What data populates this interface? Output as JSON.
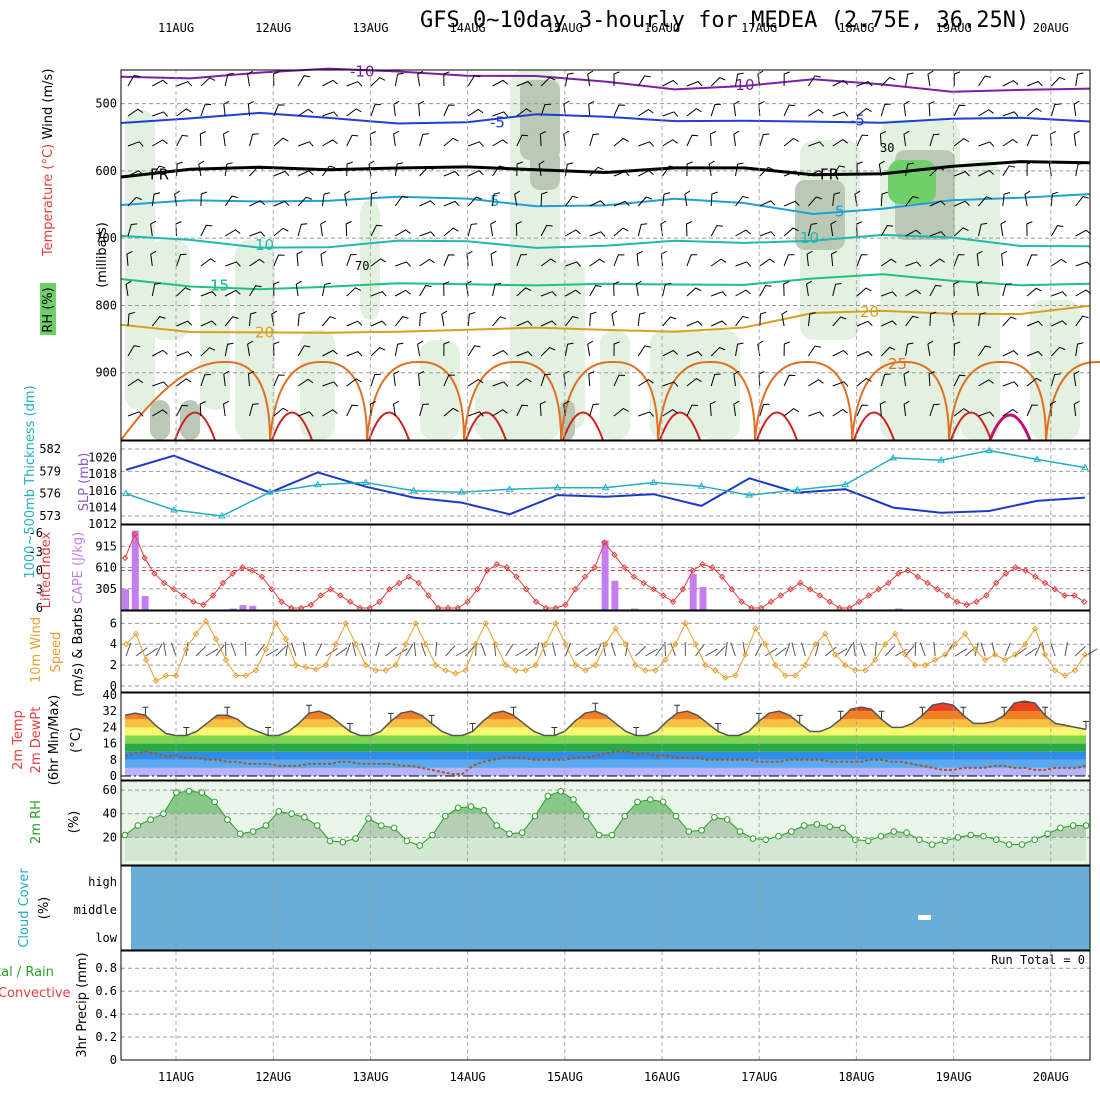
{
  "title": "GFS 0~10day 3-hourly for MEDEA (2.75E, 36.25N)",
  "chart_data": [
    {
      "panel": "upper-air",
      "type": "heatmap",
      "y_label_parts": [
        "RH (%)",
        "Temperature (°C)",
        "Wind (m/s)"
      ],
      "y_unit_label": "(millibars)",
      "y_ticks": [
        500,
        600,
        700,
        800,
        900
      ],
      "ylim": [
        1000,
        450
      ],
      "temperature_contours": [
        {
          "label": "-10",
          "color": "#7a1fa8",
          "p": [
            460,
            458,
            455,
            452,
            450,
            455,
            462,
            470,
            475,
            472,
            468,
            472,
            478,
            480,
            482
          ]
        },
        {
          "label": "-5",
          "color": "#1f3fd0",
          "p": [
            525,
            520,
            518,
            522,
            525,
            528,
            520,
            518,
            522,
            528,
            530,
            525,
            520,
            525,
            528
          ]
        },
        {
          "label": "FR",
          "color": "#000000",
          "p": [
            605,
            600,
            598,
            595,
            593,
            598,
            600,
            598,
            595,
            600,
            605,
            600,
            595,
            590,
            585
          ]
        },
        {
          "label": "5",
          "color": "#1fa0d8",
          "p": [
            650,
            648,
            645,
            640,
            640,
            645,
            650,
            648,
            645,
            650,
            660,
            655,
            648,
            640,
            630
          ]
        },
        {
          "label": "10",
          "color": "#20b8b0",
          "p": [
            700,
            705,
            710,
            712,
            708,
            705,
            710,
            712,
            708,
            705,
            700,
            698,
            702,
            708,
            710
          ]
        },
        {
          "label": "15",
          "color": "#20c080",
          "p": [
            765,
            770,
            772,
            775,
            770,
            765,
            768,
            772,
            770,
            765,
            760,
            758,
            762,
            766,
            770
          ]
        },
        {
          "label": "20",
          "color": "#d8a020",
          "p": [
            830,
            835,
            840,
            845,
            838,
            832,
            835,
            840,
            836,
            830,
            815,
            810,
            808,
            812,
            805
          ]
        },
        {
          "label": "25",
          "color": "#e07020",
          "p": [
            990,
            920,
            990,
            915,
            990,
            912,
            990,
            910,
            990,
            900,
            870,
            865,
            860,
            870,
            880
          ]
        }
      ],
      "rh_contour_labels": [
        "30",
        "70"
      ]
    },
    {
      "panel": "thickness-slp",
      "type": "line",
      "y_label_left": "1000~500mb Thickness (dm)",
      "y_label_right": "SLP (mb)",
      "left_ticks": [
        573,
        576,
        579,
        582
      ],
      "right_ticks": [
        1014,
        1016,
        1018,
        1020
      ],
      "x": [
        "10AUG12",
        "11AUG00",
        "11AUG12",
        "12AUG00",
        "12AUG12",
        "13AUG00",
        "13AUG12",
        "14AUG00",
        "14AUG12",
        "15AUG00",
        "15AUG12",
        "16AUG00",
        "16AUG12",
        "17AUG00",
        "17AUG12",
        "18AUG00",
        "18AUG12",
        "19AUG00",
        "19AUG12",
        "20AUG00",
        "20AUG12"
      ],
      "series": [
        {
          "name": "SLP",
          "color": "#1a3acc",
          "values": [
            1018.5,
            1020.2,
            1018.0,
            1015.8,
            1018.2,
            1016.5,
            1015.2,
            1014.6,
            1013.2,
            1015.5,
            1015.3,
            1015.6,
            1014.2,
            1017.5,
            1015.8,
            1016.2,
            1014.0,
            1013.4,
            1013.6,
            1014.8,
            1015.2
          ]
        },
        {
          "name": "Thickness",
          "color": "#20b0c0",
          "values": [
            576.0,
            573.8,
            573.0,
            576.2,
            577.2,
            577.5,
            576.4,
            576.2,
            576.6,
            576.8,
            576.8,
            577.5,
            577.0,
            575.8,
            576.5,
            577.2,
            580.8,
            580.5,
            581.8,
            580.6,
            579.5
          ]
        }
      ]
    },
    {
      "panel": "stability",
      "type": "bar",
      "y_label_left": "Lifted Index",
      "y_label_right": "CAPE (J/kg)",
      "left_ticks": [
        -6,
        -3,
        0,
        3,
        6
      ],
      "right_ticks": [
        305,
        610,
        915
      ],
      "cape_bars": [
        {
          "x": 0,
          "v": 300
        },
        {
          "x": 1,
          "v": 1140
        },
        {
          "x": 2,
          "v": 200
        },
        {
          "x": 11,
          "v": 20
        },
        {
          "x": 12,
          "v": 70
        },
        {
          "x": 13,
          "v": 60
        },
        {
          "x": 49,
          "v": 1000
        },
        {
          "x": 50,
          "v": 420
        },
        {
          "x": 52,
          "v": 20
        },
        {
          "x": 58,
          "v": 520
        },
        {
          "x": 59,
          "v": 330
        },
        {
          "x": 79,
          "v": 20
        }
      ],
      "lifted_index": [
        -2,
        -5.8,
        -2,
        0.5,
        2,
        3,
        4,
        5,
        5.5,
        4,
        2,
        0.5,
        -0.5,
        0,
        1,
        3,
        5,
        6,
        6,
        5.5,
        4,
        3,
        4,
        5,
        6,
        6,
        5,
        3,
        2,
        1,
        2,
        4,
        6,
        6,
        6,
        5,
        3,
        0,
        -1,
        -0.5,
        1,
        3,
        5,
        6,
        6,
        5.5,
        3,
        1,
        -0.5,
        -4.5,
        -2.5,
        -0.5,
        1,
        2,
        3,
        4,
        5,
        3,
        0,
        -1,
        -0.5,
        1,
        3,
        5,
        6,
        6,
        5,
        4,
        3,
        2,
        3,
        4,
        5,
        6,
        6,
        5,
        4,
        3,
        2,
        0.5,
        0,
        1,
        2,
        3,
        4,
        5,
        5.5,
        5,
        4,
        2,
        0.5,
        -0.5,
        0,
        1,
        2,
        3,
        4,
        4,
        5
      ]
    },
    {
      "panel": "wind10m",
      "type": "line",
      "y_label": "10m Wind Speed & Barbs (m/s)",
      "y_ticks": [
        0,
        2,
        4,
        6
      ],
      "values": [
        4,
        5,
        2.5,
        0.5,
        1,
        1,
        3.5,
        5,
        6.2,
        4.5,
        2.5,
        1,
        1,
        1.5,
        3.5,
        6,
        4.5,
        2,
        1.8,
        1.6,
        2,
        4,
        6,
        4,
        2,
        1.5,
        1.5,
        2,
        4,
        6,
        4,
        2,
        1.5,
        1.2,
        1.5,
        4,
        6,
        4,
        2,
        1.5,
        1.5,
        2,
        4,
        6,
        4,
        2,
        1.5,
        2,
        4,
        5.5,
        4,
        2,
        1.5,
        1.5,
        2.5,
        4,
        6,
        4,
        2,
        1.5,
        0.8,
        1,
        3,
        5.5,
        4,
        2,
        1,
        1,
        2,
        4,
        5,
        3,
        2,
        1.5,
        1.5,
        2.5,
        4,
        5,
        3,
        2,
        2,
        2.5,
        3,
        4,
        5,
        3.5,
        2.5,
        3,
        2.5,
        3,
        4,
        5.5,
        3,
        1.5,
        1,
        1.5,
        3
      ]
    },
    {
      "panel": "temperature",
      "type": "area",
      "y_label": "2m Temp 2m DewPt (6hr Min/Max) (°C)",
      "y_ticks": [
        0,
        8,
        16,
        24,
        32,
        40
      ],
      "temp_max": [
        30,
        31,
        30,
        25,
        21,
        20,
        20,
        22,
        26,
        30,
        30,
        28,
        24,
        22,
        20,
        20,
        22,
        26,
        31,
        32,
        30,
        26,
        22,
        20,
        20,
        22,
        27,
        31,
        32,
        30,
        26,
        22,
        20,
        20,
        22,
        27,
        31,
        32,
        30,
        26,
        22,
        20,
        20,
        22,
        27,
        31,
        32,
        30,
        26,
        22,
        20,
        20,
        22,
        27,
        31,
        32,
        30,
        26,
        22,
        20,
        20,
        22,
        27,
        31,
        32,
        30,
        26,
        22,
        22,
        24,
        28,
        33,
        34,
        33,
        28,
        24,
        24,
        26,
        30,
        35,
        36,
        35,
        30,
        26,
        26,
        27,
        30,
        36,
        37,
        36,
        30,
        26,
        25,
        24,
        23
      ],
      "dewpoint": [
        10,
        11,
        12,
        11,
        10,
        10,
        9,
        9,
        8,
        8,
        7,
        7,
        6,
        6,
        6,
        5,
        5,
        5,
        6,
        6,
        6,
        7,
        7,
        6,
        6,
        6,
        6,
        5,
        5,
        4,
        3,
        2,
        1,
        1,
        5,
        7,
        8,
        9,
        9,
        9,
        8,
        8,
        8,
        8,
        9,
        9,
        10,
        11,
        12,
        12,
        11,
        11,
        10,
        10,
        9,
        9,
        9,
        8,
        8,
        8,
        8,
        8,
        7,
        7,
        7,
        8,
        8,
        8,
        8,
        7,
        7,
        7,
        7,
        8,
        8,
        7,
        7,
        6,
        5,
        4,
        3,
        3,
        4,
        4,
        4,
        5,
        5,
        4,
        4,
        3,
        3,
        4,
        4,
        4,
        5
      ]
    },
    {
      "panel": "rh",
      "type": "area",
      "y_label": "2m RH (%)",
      "y_ticks": [
        20,
        40,
        60
      ],
      "values": [
        22,
        30,
        35,
        40,
        58,
        59,
        58,
        50,
        35,
        23,
        25,
        30,
        42,
        40,
        37,
        30,
        17,
        16,
        19,
        36,
        30,
        28,
        17,
        13,
        22,
        38,
        45,
        46,
        43,
        30,
        23,
        24,
        38,
        55,
        59,
        52,
        38,
        22,
        22,
        38,
        50,
        52,
        50,
        38,
        25,
        26,
        37,
        35,
        25,
        19,
        18,
        21,
        25,
        30,
        31,
        29,
        28,
        18,
        17,
        21,
        25,
        24,
        18,
        14,
        17,
        20,
        22,
        21,
        18,
        14,
        14,
        18,
        23,
        28,
        30,
        30
      ]
    },
    {
      "panel": "cloud",
      "type": "heatmap",
      "y_label": "Cloud Cover (%)",
      "y_ticks": [
        "high",
        "middle",
        "low"
      ]
    },
    {
      "panel": "precip",
      "type": "bar",
      "y_label_left": "tal / Rain",
      "y_label_left2": "Convective",
      "y_label": "3hr Precip (mm)",
      "y_ticks": [
        0,
        0.2,
        0.4,
        0.6,
        0.8
      ],
      "annotation": "Run Total = 0"
    }
  ],
  "x_axis": {
    "top_labels": [
      "11AUG",
      "12AUG",
      "13AUG",
      "14AUG",
      "15AUG",
      "16AUG",
      "17AUG",
      "18AUG",
      "19AUG",
      "20AUG"
    ],
    "bottom_labels": [
      "11AUG",
      "12AUG",
      "13AUG",
      "14AUG",
      "15AUG",
      "16AUG",
      "17AUG",
      "18AUG",
      "19AUG",
      "20AUG"
    ]
  },
  "colors": {
    "grid": "#9a9a9a",
    "rh_fill": "#e3f1e1",
    "rh_fill_dark": "#b9c9b6",
    "rh_fill_green": "#6fd06a",
    "cloud": "#6aadd6",
    "cape": "#c47ef0",
    "lifted": "#e04040",
    "wind": "#e8a030",
    "slp": "#1a3acc",
    "thick": "#20b0c0",
    "rh_line": "#2aa02a",
    "dew": "#a05a2a"
  }
}
